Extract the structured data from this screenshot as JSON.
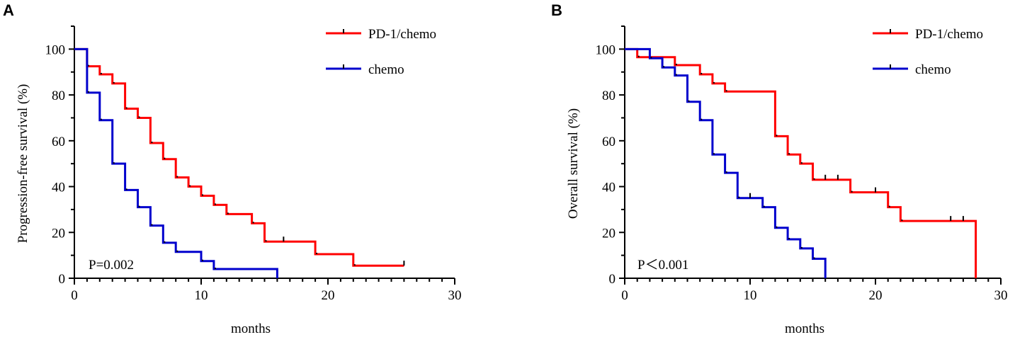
{
  "chart_data": [
    {
      "type": "line",
      "panel_label": "A",
      "title": "",
      "xlabel": "months",
      "ylabel": "Progression-free survival (%)",
      "xlim": [
        0,
        30
      ],
      "ylim": [
        0,
        110
      ],
      "xticks": [
        0,
        10,
        20,
        30
      ],
      "yticks": [
        0,
        20,
        40,
        60,
        80,
        100
      ],
      "grid": false,
      "legend_position": "top-right",
      "annotation": "P=0.002",
      "series": [
        {
          "name": "PD-1/chemo",
          "color": "#ff0000",
          "steps": [
            [
              0,
              100
            ],
            [
              1,
              92.5
            ],
            [
              2,
              89
            ],
            [
              3,
              85
            ],
            [
              4,
              74
            ],
            [
              5,
              70
            ],
            [
              6,
              59
            ],
            [
              7,
              52
            ],
            [
              8,
              44
            ],
            [
              9,
              40
            ],
            [
              10,
              36
            ],
            [
              11,
              32
            ],
            [
              12,
              28
            ],
            [
              14,
              24
            ],
            [
              15,
              16
            ],
            [
              19,
              10.5
            ],
            [
              22,
              5.5
            ],
            [
              26,
              5.5
            ]
          ],
          "censored": [
            [
              16.5,
              16
            ],
            [
              26,
              5.5
            ]
          ]
        },
        {
          "name": "chemo",
          "color": "#0000cd",
          "steps": [
            [
              0,
              100
            ],
            [
              1,
              81
            ],
            [
              2,
              69
            ],
            [
              3,
              50
            ],
            [
              4,
              38.5
            ],
            [
              5,
              31
            ],
            [
              6,
              23
            ],
            [
              7,
              15.5
            ],
            [
              8,
              11.5
            ],
            [
              10,
              7.5
            ],
            [
              11,
              4
            ],
            [
              16,
              4
            ],
            [
              16,
              0
            ]
          ],
          "censored": []
        }
      ]
    },
    {
      "type": "line",
      "panel_label": "B",
      "title": "",
      "xlabel": "months",
      "ylabel": "Overall survival (%)",
      "xlim": [
        0,
        30
      ],
      "ylim": [
        0,
        110
      ],
      "xticks": [
        0,
        10,
        20,
        30
      ],
      "yticks": [
        0,
        20,
        40,
        60,
        80,
        100
      ],
      "grid": false,
      "legend_position": "top-right",
      "annotation": "P＜0.001",
      "series": [
        {
          "name": "PD-1/chemo",
          "color": "#ff0000",
          "steps": [
            [
              0,
              100
            ],
            [
              1,
              96.5
            ],
            [
              4,
              93
            ],
            [
              6,
              89
            ],
            [
              7,
              85
            ],
            [
              8,
              81.5
            ],
            [
              12,
              62
            ],
            [
              13,
              54
            ],
            [
              14,
              50
            ],
            [
              15,
              43
            ],
            [
              18,
              37.5
            ],
            [
              21,
              31
            ],
            [
              22,
              25
            ],
            [
              28,
              25
            ],
            [
              28,
              0
            ]
          ],
          "censored": [
            [
              16,
              43
            ],
            [
              17,
              43
            ],
            [
              20,
              37.5
            ],
            [
              26,
              25
            ],
            [
              27,
              25
            ]
          ]
        },
        {
          "name": "chemo",
          "color": "#0000cd",
          "steps": [
            [
              0,
              100
            ],
            [
              2,
              96
            ],
            [
              3,
              92
            ],
            [
              4,
              88.5
            ],
            [
              5,
              77
            ],
            [
              6,
              69
            ],
            [
              7,
              54
            ],
            [
              8,
              46
            ],
            [
              9,
              35
            ],
            [
              11,
              31
            ],
            [
              12,
              22
            ],
            [
              13,
              17
            ],
            [
              14,
              13
            ],
            [
              15,
              8.5
            ],
            [
              16,
              8.5
            ],
            [
              16,
              0
            ]
          ],
          "censored": [
            [
              10,
              35
            ]
          ]
        }
      ]
    }
  ]
}
